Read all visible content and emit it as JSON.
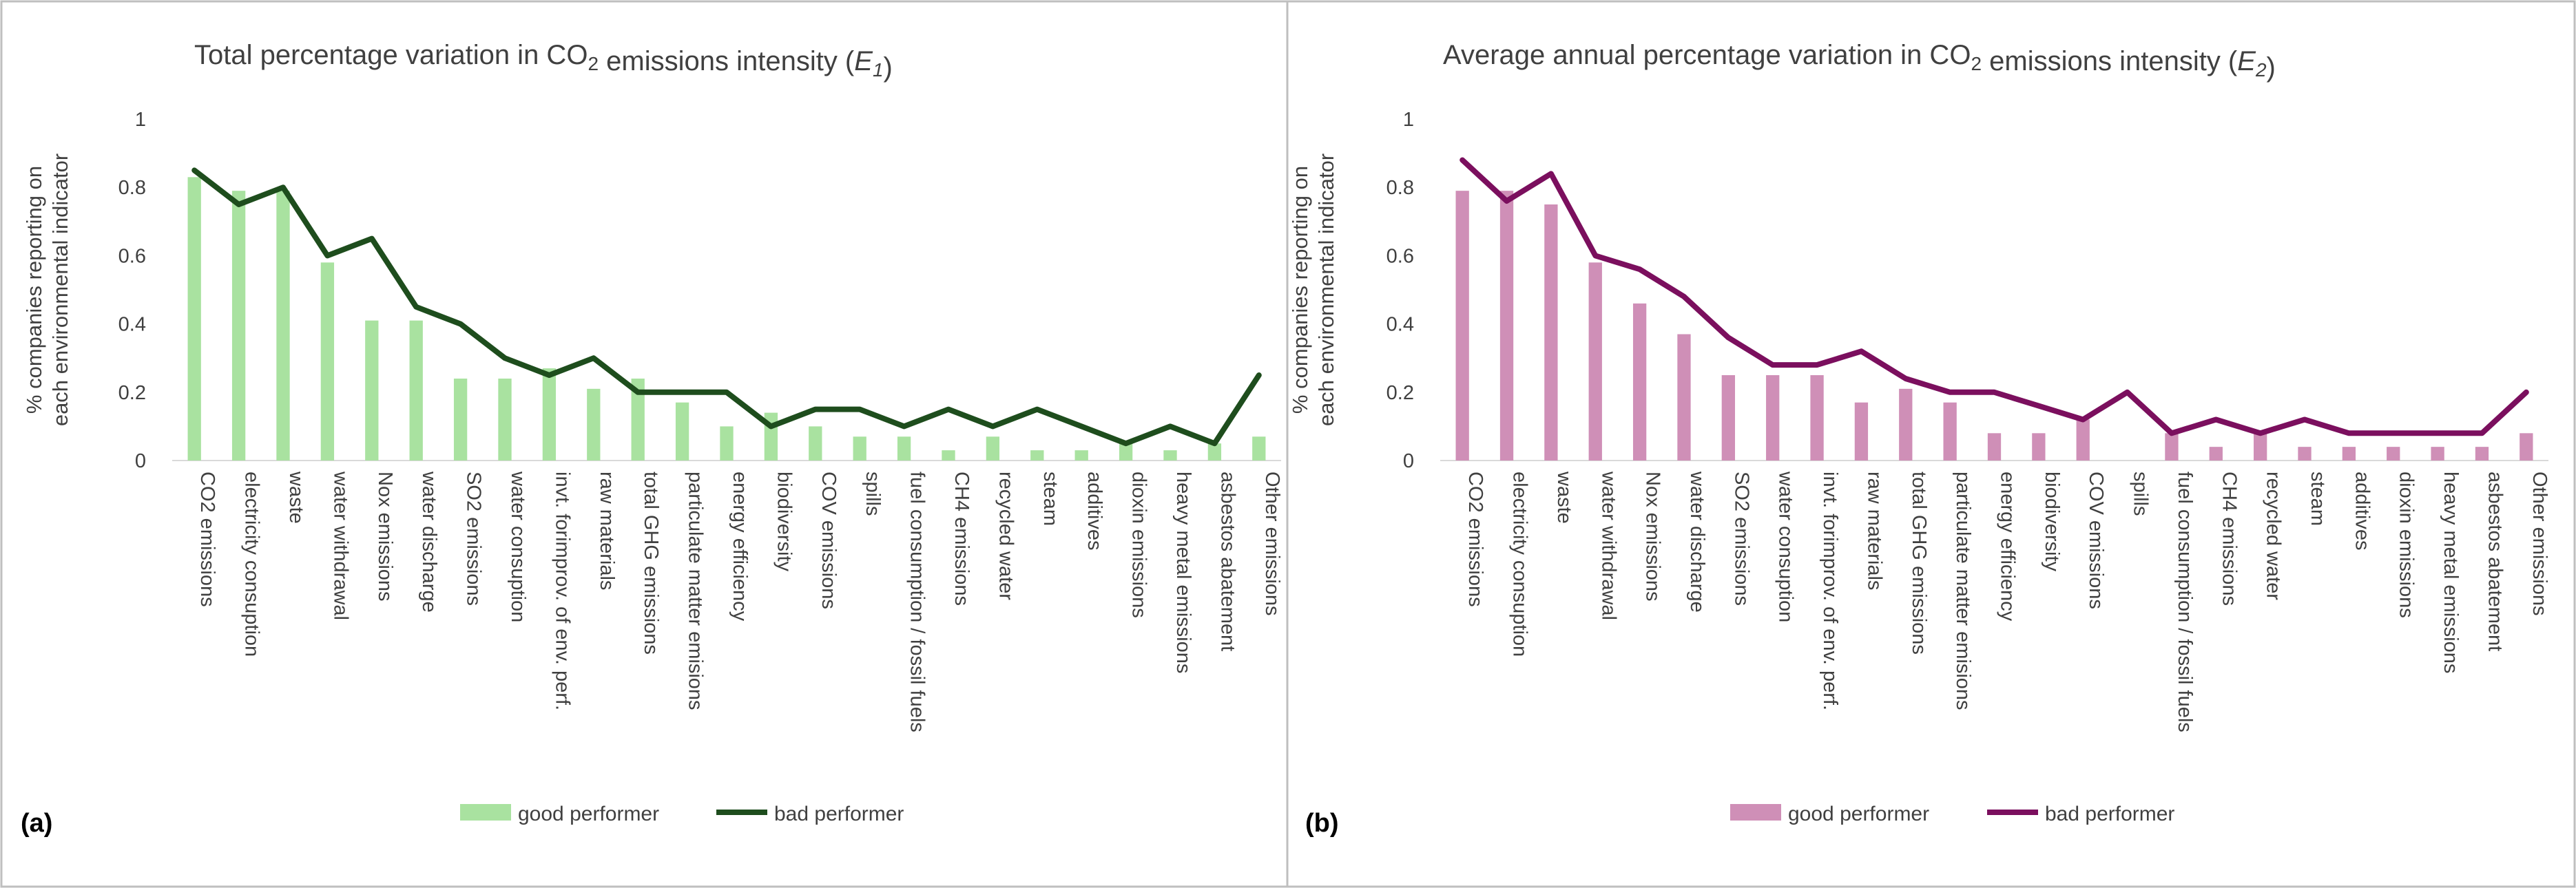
{
  "colors": {
    "left_good": "#a9e2a0",
    "left_bad": "#1e4d1d",
    "right_good": "#cf8fb7",
    "right_bad": "#7b0f5e",
    "text": "#404040",
    "frame": "#bfbfbf"
  },
  "y_axis_label_line1": "% companies reporting on",
  "y_axis_label_line2": "each environmental indicator",
  "chart_data": [
    {
      "type": "bar",
      "panel_label": "(a)",
      "title_prefix": "Total percentage variation in CO",
      "title_subscript": "2",
      "title_middle": " emissions intensity (",
      "title_italic": "E",
      "title_italic_sub": "1",
      "title_suffix": ")",
      "ylim": [
        0,
        1
      ],
      "yticks": [
        "0",
        "0.2",
        "0.4",
        "0.6",
        "0.8",
        "1"
      ],
      "categories": [
        "CO2 emissions",
        "electricity consuption",
        "waste",
        "water withdrawal",
        "Nox emissions",
        "water discharge",
        "SO2 emissions",
        "water consuption",
        "invt. forimprov. of env. perf.",
        "raw materials",
        "total GHG emissions",
        "particulate matter emisions",
        "energy efficiency",
        "biodiversity",
        "COV emissions",
        "spills",
        "fuel consumption / fossil fuels",
        "CH4 emissions",
        "recycled water",
        "steam",
        "additives",
        "dioxin emissions",
        "heavy metal emissions",
        "asbestos abatement",
        "Other emissions"
      ],
      "series": [
        {
          "name": "good performer",
          "kind": "bar",
          "values": [
            0.83,
            0.79,
            0.79,
            0.58,
            0.41,
            0.41,
            0.24,
            0.24,
            0.27,
            0.21,
            0.24,
            0.17,
            0.1,
            0.14,
            0.1,
            0.07,
            0.07,
            0.03,
            0.07,
            0.03,
            0.03,
            0.05,
            0.03,
            0.05,
            0.07
          ]
        },
        {
          "name": "bad performer",
          "kind": "line",
          "values": [
            0.85,
            0.75,
            0.8,
            0.6,
            0.65,
            0.45,
            0.4,
            0.3,
            0.25,
            0.3,
            0.2,
            0.2,
            0.2,
            0.1,
            0.15,
            0.15,
            0.1,
            0.15,
            0.1,
            0.15,
            0.1,
            0.05,
            0.1,
            0.05,
            0.25
          ]
        }
      ]
    },
    {
      "type": "bar",
      "panel_label": "(b)",
      "title_prefix": "Average annual percentage variation in CO",
      "title_subscript": "2",
      "title_middle": " emissions intensity (",
      "title_italic": "E",
      "title_italic_sub": "2",
      "title_suffix": ")",
      "ylim": [
        0,
        1
      ],
      "yticks": [
        "0",
        "0.2",
        "0.4",
        "0.6",
        "0.8",
        "1"
      ],
      "categories": [
        "CO2 emissions",
        "electricity consuption",
        "waste",
        "water withdrawal",
        "Nox emissions",
        "water discharge",
        "SO2 emissions",
        "water consuption",
        "invt. forimprov. of env. perf.",
        "raw materials",
        "total GHG emissions",
        "particulate matter emisions",
        "energy efficiency",
        "biodiversity",
        "COV emissions",
        "spills",
        "fuel consumption / fossil fuels",
        "CH4 emissions",
        "recycled water",
        "steam",
        "additives",
        "dioxin emissions",
        "heavy metal emissions",
        "asbestos abatement",
        "Other emissions"
      ],
      "series": [
        {
          "name": "good performer",
          "kind": "bar",
          "values": [
            0.79,
            0.79,
            0.75,
            0.58,
            0.46,
            0.37,
            0.25,
            0.25,
            0.25,
            0.17,
            0.21,
            0.17,
            0.08,
            0.08,
            0.12,
            0.0,
            0.08,
            0.04,
            0.08,
            0.04,
            0.04,
            0.04,
            0.04,
            0.04,
            0.08
          ]
        },
        {
          "name": "bad performer",
          "kind": "line",
          "values": [
            0.88,
            0.76,
            0.84,
            0.6,
            0.56,
            0.48,
            0.36,
            0.28,
            0.28,
            0.32,
            0.24,
            0.2,
            0.2,
            0.16,
            0.12,
            0.2,
            0.08,
            0.12,
            0.08,
            0.12,
            0.08,
            0.08,
            0.08,
            0.08,
            0.2
          ]
        }
      ]
    }
  ]
}
